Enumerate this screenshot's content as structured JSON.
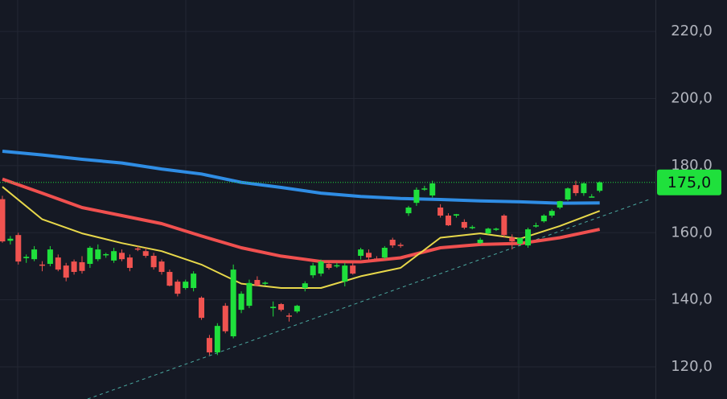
{
  "chart_data": {
    "type": "candlestick",
    "ylim": [
      110.4,
      229.4
    ],
    "xlim": [
      -0.3,
      82
    ],
    "yticks": [
      {
        "value": 120,
        "label": "120,0"
      },
      {
        "value": 140,
        "label": "140,0"
      },
      {
        "value": 160,
        "label": "160,0"
      },
      {
        "value": 180,
        "label": "180,0"
      },
      {
        "value": 200,
        "label": "200,0"
      },
      {
        "value": 220,
        "label": "220,0"
      }
    ],
    "grid": true,
    "up_color": "#1fe03c",
    "down_color": "#f05350",
    "open": [
      170,
      157.6,
      159.3,
      152.4,
      152.1,
      150.5,
      150.7,
      152.6,
      150.2,
      151.4,
      151.2,
      150.7,
      152.1,
      153.4,
      151.7,
      154,
      152.6,
      155.3,
      154.5,
      153.1,
      151.4,
      148.3,
      145.4,
      143.5,
      143.5,
      140.6,
      128.6,
      124.3,
      138.2,
      129.1,
      137,
      138.2,
      145.9,
      144.9,
      137.5,
      138.7,
      135.3,
      136.5,
      143.5,
      147.3,
      147.8,
      150.7,
      150,
      145.4,
      150.2,
      153.1,
      154,
      152.3,
      152.6,
      157.9,
      156.4,
      165.8,
      168.9,
      173,
      171.1,
      167.5,
      165.1,
      165.1,
      163.2,
      161.6,
      156.9,
      159.8,
      161,
      165.1,
      158.6,
      156.7,
      156.2,
      162,
      163.4,
      165.1,
      167.5,
      169.9,
      174.2,
      171.8,
      170.6,
      172.5
    ],
    "high": [
      171,
      159,
      160,
      153.5,
      156,
      151.5,
      156,
      153.5,
      151,
      152,
      153,
      156,
      156.5,
      154,
      155.5,
      155,
      153.5,
      156,
      155.5,
      154,
      152,
      149,
      146,
      146,
      148.5,
      141,
      129.5,
      133,
      139,
      150.5,
      142.5,
      146,
      147,
      145.5,
      139.5,
      139,
      136,
      138.5,
      145.5,
      151,
      152,
      151.5,
      151,
      151,
      151,
      155.5,
      155,
      153,
      156,
      158.5,
      157,
      168,
      173.5,
      174,
      175.5,
      168.5,
      165.8,
      165.6,
      164,
      162.2,
      158.5,
      161.5,
      161.5,
      165.5,
      159.5,
      158.6,
      161.5,
      163,
      165.5,
      167,
      169.5,
      173.5,
      175.5,
      175,
      171.5,
      175.3
    ],
    "low": [
      157,
      156.5,
      150.5,
      151,
      151.5,
      148.5,
      150,
      148.5,
      145.5,
      147.5,
      147.8,
      149.5,
      151.5,
      152.5,
      151,
      151.5,
      148.5,
      154.5,
      152.5,
      149,
      147.5,
      144,
      141,
      143,
      142.5,
      134,
      123.5,
      123.5,
      130,
      128.5,
      136,
      137.5,
      144,
      144.2,
      135,
      136.5,
      133.5,
      136,
      142.5,
      146.5,
      147,
      149,
      149.5,
      144,
      147.5,
      152,
      152,
      151.5,
      152,
      155.5,
      155.5,
      165,
      168,
      172.5,
      170.5,
      164.5,
      162,
      164.5,
      161,
      161,
      156.5,
      159.5,
      160.5,
      158.5,
      155,
      156,
      155.5,
      161.5,
      163,
      164.5,
      167,
      169.5,
      171,
      171,
      170.5,
      172
    ],
    "close": [
      157.4,
      158.2,
      151.4,
      152.8,
      155,
      150.2,
      155,
      149,
      146.6,
      148.3,
      148.6,
      155.5,
      155,
      153.6,
      154.5,
      152.1,
      149.5,
      155,
      153.1,
      149.7,
      148.3,
      144.2,
      141.8,
      145.4,
      147.8,
      134.6,
      124.3,
      132.2,
      130.6,
      149,
      141.8,
      145,
      144.2,
      145.1,
      137.9,
      137,
      135,
      138.2,
      144.9,
      150.2,
      151.4,
      149.5,
      150.3,
      150.2,
      147.8,
      155,
      152.6,
      152.1,
      155.5,
      156.2,
      156.2,
      167.5,
      172.8,
      173.2,
      174.7,
      165.1,
      162.2,
      165.5,
      161.5,
      161.7,
      157.9,
      161.2,
      161.2,
      159.3,
      157.4,
      158.4,
      161,
      162.2,
      165.1,
      166.5,
      169.4,
      173.2,
      171.8,
      174.7,
      170.8,
      175
    ],
    "lines": [
      {
        "color": "#2f8de4",
        "width": 4,
        "x": [
          0,
          5,
          10,
          15,
          20,
          25,
          30,
          35,
          40,
          45,
          50,
          55,
          60,
          65,
          70,
          75
        ],
        "values": [
          184.3,
          183.2,
          181.9,
          180.8,
          179,
          177.5,
          175,
          173.5,
          171.8,
          170.8,
          170.2,
          169.9,
          169.5,
          169.2,
          168.8,
          168.9
        ]
      },
      {
        "color": "#f0504f",
        "width": 4,
        "x": [
          0,
          5,
          10,
          15,
          20,
          25,
          30,
          35,
          40,
          45,
          50,
          55,
          60,
          65,
          70,
          75
        ],
        "values": [
          176,
          171.8,
          167.5,
          165.1,
          162.7,
          159,
          155.5,
          153,
          151.4,
          151.3,
          152.5,
          155.5,
          156.5,
          156.8,
          158.5,
          161
        ]
      },
      {
        "color": "#e8d84a",
        "width": 2,
        "x": [
          0,
          5,
          10,
          15,
          20,
          25,
          30,
          35,
          40,
          45,
          50,
          55,
          60,
          65,
          70,
          75
        ],
        "values": [
          173.7,
          164,
          159.8,
          156.9,
          154.5,
          150.5,
          144.8,
          143.5,
          143.5,
          147,
          149.5,
          158.5,
          159.8,
          158.2,
          162,
          166.5
        ]
      }
    ],
    "trendline": {
      "color": "#4aa8a0",
      "x": [
        10.7,
        81.2
      ],
      "values": [
        110.4,
        169.9
      ]
    },
    "current_price": {
      "value": 175,
      "label": "175,0",
      "color": "#1fe03c"
    }
  }
}
